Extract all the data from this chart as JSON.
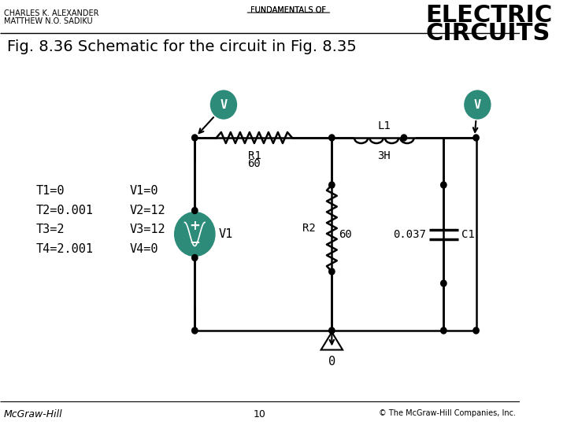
{
  "bg_color": "#ffffff",
  "teal_color": "#2d8b7a",
  "line_color": "#000000",
  "title_text": "Fig. 8.36 Schematic for the circuit in Fig. 8.35",
  "header_left1": "CHARLES K. ALEXANDER",
  "header_left2": "MATTHEW N.O. SADIKU",
  "header_center": "FUNDAMENTALS OF",
  "header_right1": "ELECTRIC",
  "header_right2": "CIRCUITS",
  "footer_left": "McGraw-Hill",
  "footer_center": "10",
  "footer_right": "© The McGraw-Hill Companies, Inc.",
  "labels": {
    "R1": "R1",
    "R1_val": "60",
    "L1": "L1",
    "L1_val": "3H",
    "R2": "R2",
    "R2_val": "60",
    "C1_val": "0.037",
    "C1": "C1",
    "V1": "V1",
    "gnd": "0",
    "T_vals": "T1=0\nT2=0.001\nT3=2\nT4=2.001",
    "V_vals": "V1=0\nV2=12\nV3=12\nV4=0"
  }
}
